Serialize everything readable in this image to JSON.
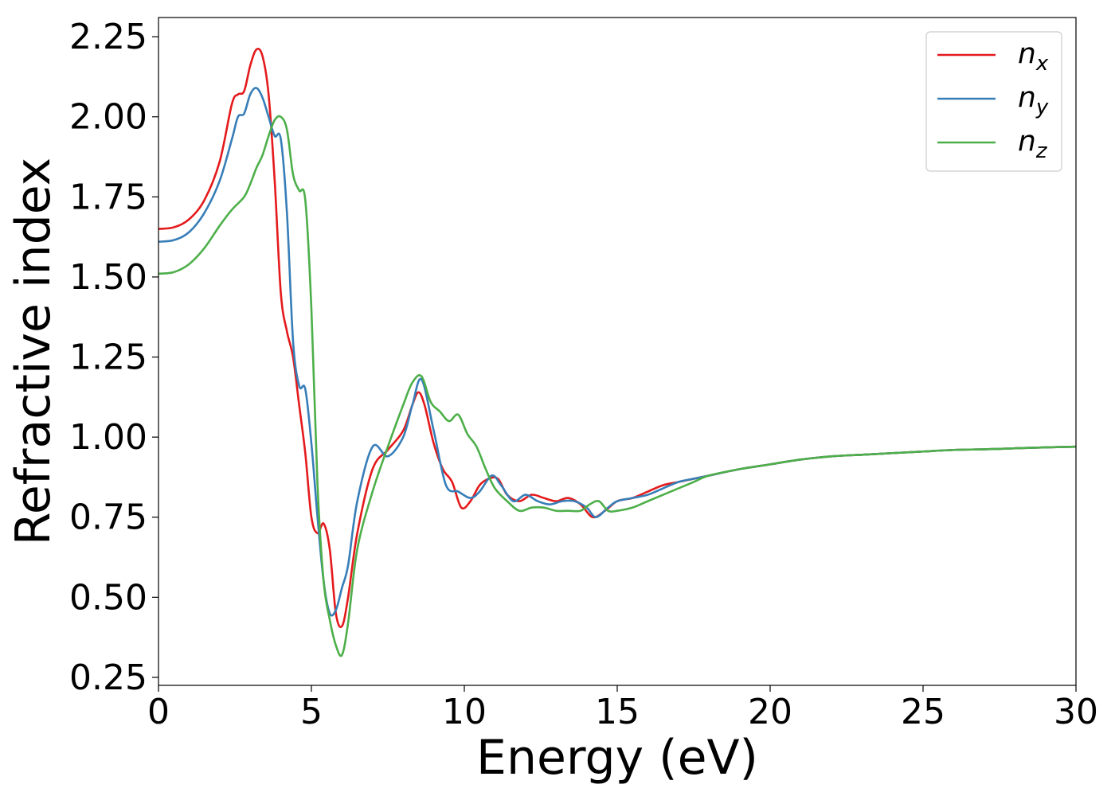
{
  "chart_data": {
    "type": "line",
    "title": "",
    "xlabel": "Energy (eV)",
    "ylabel": "Refractive index",
    "xlim": [
      0,
      30
    ],
    "ylim": [
      0.225,
      2.31
    ],
    "xticks": [
      0,
      5,
      10,
      15,
      20,
      25,
      30
    ],
    "xtick_labels": [
      "0",
      "5",
      "10",
      "15",
      "20",
      "25",
      "30"
    ],
    "yticks": [
      0.25,
      0.5,
      0.75,
      1.0,
      1.25,
      1.5,
      1.75,
      2.0,
      2.25
    ],
    "ytick_labels": [
      "0.25",
      "0.50",
      "0.75",
      "1.00",
      "1.25",
      "1.50",
      "1.75",
      "2.00",
      "2.25"
    ],
    "grid": false,
    "legend_position": "top-right",
    "series": [
      {
        "name": "n",
        "subscript": "x",
        "color": "#e41a1c",
        "x": [
          0,
          0.5,
          1,
          1.5,
          2,
          2.4,
          2.6,
          2.8,
          3.0,
          3.2,
          3.4,
          3.6,
          3.8,
          4.0,
          4.2,
          4.4,
          4.6,
          4.8,
          5.0,
          5.2,
          5.4,
          5.6,
          5.8,
          6.0,
          6.2,
          6.5,
          7.0,
          7.5,
          8.0,
          8.3,
          8.5,
          8.7,
          9.0,
          9.3,
          9.6,
          9.9,
          10.2,
          10.5,
          10.8,
          11.1,
          11.4,
          11.8,
          12.2,
          12.6,
          13.0,
          13.4,
          13.8,
          14.2,
          14.6,
          15.0,
          15.5,
          16.0,
          16.5,
          17.0,
          17.5,
          18,
          19,
          20,
          21,
          22,
          23,
          24,
          25,
          26,
          27,
          28,
          29,
          30
        ],
        "y": [
          1.65,
          1.655,
          1.68,
          1.74,
          1.86,
          2.04,
          2.07,
          2.08,
          2.16,
          2.21,
          2.19,
          2.07,
          1.8,
          1.45,
          1.33,
          1.25,
          1.1,
          0.95,
          0.75,
          0.7,
          0.73,
          0.65,
          0.45,
          0.41,
          0.5,
          0.7,
          0.9,
          0.96,
          1.02,
          1.1,
          1.14,
          1.1,
          0.98,
          0.9,
          0.86,
          0.78,
          0.8,
          0.85,
          0.87,
          0.87,
          0.82,
          0.8,
          0.82,
          0.81,
          0.8,
          0.81,
          0.79,
          0.75,
          0.77,
          0.8,
          0.81,
          0.83,
          0.85,
          0.86,
          0.87,
          0.88,
          0.9,
          0.915,
          0.93,
          0.94,
          0.945,
          0.95,
          0.955,
          0.96,
          0.962,
          0.965,
          0.968,
          0.97
        ]
      },
      {
        "name": "n",
        "subscript": "y",
        "color": "#377eb8",
        "x": [
          0,
          0.5,
          1,
          1.5,
          2,
          2.4,
          2.6,
          2.8,
          3.0,
          3.2,
          3.4,
          3.6,
          3.8,
          4.0,
          4.2,
          4.4,
          4.6,
          4.8,
          5.0,
          5.2,
          5.4,
          5.6,
          5.8,
          6.0,
          6.2,
          6.5,
          7.0,
          7.5,
          8.0,
          8.3,
          8.6,
          9.0,
          9.4,
          9.8,
          10.2,
          10.5,
          10.9,
          11.2,
          11.6,
          12.0,
          12.4,
          12.8,
          13.2,
          13.6,
          14.0,
          14.3,
          14.7,
          15.0,
          15.5,
          16.0,
          16.5,
          17.0,
          17.5,
          18,
          19,
          20,
          21,
          22,
          23,
          24,
          25,
          26,
          27,
          28,
          29,
          30
        ],
        "y": [
          1.61,
          1.615,
          1.64,
          1.7,
          1.8,
          1.93,
          2.0,
          2.01,
          2.07,
          2.09,
          2.06,
          2.0,
          1.94,
          1.93,
          1.7,
          1.3,
          1.16,
          1.15,
          0.98,
          0.75,
          0.55,
          0.45,
          0.46,
          0.53,
          0.6,
          0.8,
          0.97,
          0.94,
          1.0,
          1.1,
          1.18,
          1.02,
          0.85,
          0.83,
          0.81,
          0.83,
          0.88,
          0.85,
          0.8,
          0.82,
          0.8,
          0.79,
          0.8,
          0.8,
          0.78,
          0.75,
          0.78,
          0.8,
          0.81,
          0.82,
          0.84,
          0.86,
          0.87,
          0.88,
          0.9,
          0.915,
          0.93,
          0.94,
          0.945,
          0.95,
          0.955,
          0.96,
          0.962,
          0.965,
          0.968,
          0.97
        ]
      },
      {
        "name": "n",
        "subscript": "z",
        "color": "#4daf4a",
        "x": [
          0,
          0.5,
          1,
          1.5,
          2,
          2.4,
          2.8,
          3.0,
          3.2,
          3.4,
          3.6,
          3.8,
          4.0,
          4.2,
          4.4,
          4.6,
          4.8,
          5.0,
          5.2,
          5.4,
          5.6,
          5.8,
          6.0,
          6.2,
          6.5,
          7.0,
          7.5,
          8.0,
          8.3,
          8.6,
          8.9,
          9.2,
          9.5,
          9.8,
          10.1,
          10.4,
          10.7,
          11.0,
          11.4,
          11.8,
          12.2,
          12.6,
          13.0,
          13.4,
          13.8,
          14.1,
          14.4,
          14.7,
          15.0,
          15.5,
          16.0,
          16.5,
          17.0,
          17.5,
          18,
          19,
          20,
          21,
          22,
          23,
          24,
          25,
          26,
          27,
          28,
          29,
          30
        ],
        "y": [
          1.51,
          1.515,
          1.54,
          1.59,
          1.66,
          1.71,
          1.75,
          1.79,
          1.84,
          1.88,
          1.94,
          1.99,
          2.0,
          1.96,
          1.82,
          1.77,
          1.74,
          1.4,
          0.85,
          0.55,
          0.43,
          0.35,
          0.32,
          0.42,
          0.65,
          0.83,
          0.97,
          1.1,
          1.17,
          1.19,
          1.11,
          1.08,
          1.05,
          1.07,
          1.01,
          0.97,
          0.9,
          0.84,
          0.8,
          0.77,
          0.78,
          0.78,
          0.77,
          0.77,
          0.77,
          0.79,
          0.8,
          0.77,
          0.77,
          0.78,
          0.8,
          0.82,
          0.84,
          0.86,
          0.88,
          0.9,
          0.915,
          0.93,
          0.94,
          0.945,
          0.95,
          0.955,
          0.96,
          0.962,
          0.965,
          0.968,
          0.97
        ]
      }
    ]
  }
}
